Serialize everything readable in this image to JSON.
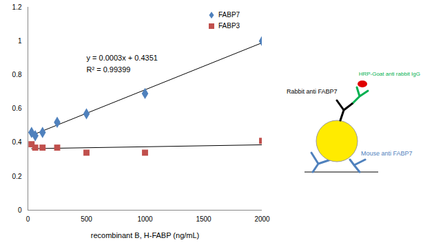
{
  "chart_data": {
    "type": "scatter",
    "x_label": "recombinant B, H-FABP (ng/mL)",
    "xlim": [
      0,
      2000
    ],
    "xticks": [
      0,
      500,
      1000,
      1500,
      2000
    ],
    "ylim": [
      0,
      1.2
    ],
    "yticks": [
      0,
      0.2,
      0.4,
      0.6,
      0.8,
      1,
      1.2
    ],
    "grid": false,
    "legend": "top-right",
    "series": [
      {
        "name": "FABP7",
        "color": "#4f81bd",
        "marker": "diamond",
        "line_style": "solid",
        "x": [
          31.25,
          62.5,
          125,
          250,
          500,
          1000,
          2000
        ],
        "values": [
          0.46,
          0.44,
          0.46,
          0.52,
          0.57,
          0.69,
          1.0
        ]
      },
      {
        "name": "FABP3",
        "color": "#c0504d",
        "marker": "square",
        "line_style": "solid",
        "x": [
          31.25,
          62.5,
          125,
          250,
          500,
          1000,
          2000
        ],
        "values": [
          0.39,
          0.37,
          0.37,
          0.37,
          0.34,
          0.34,
          0.41
        ]
      }
    ],
    "annotations": [
      "y = 0.0003x + 0.4351",
      "R² = 0.99399"
    ]
  },
  "diagram": {
    "labels": [
      {
        "text": "HRP-Goat anti rabbit IgG",
        "color": "#00b050"
      },
      {
        "text": "Rabbit anti FABP7",
        "color": "#000000"
      },
      {
        "text": "Mouse anti FABP7",
        "color": "#4f81bd"
      }
    ]
  }
}
